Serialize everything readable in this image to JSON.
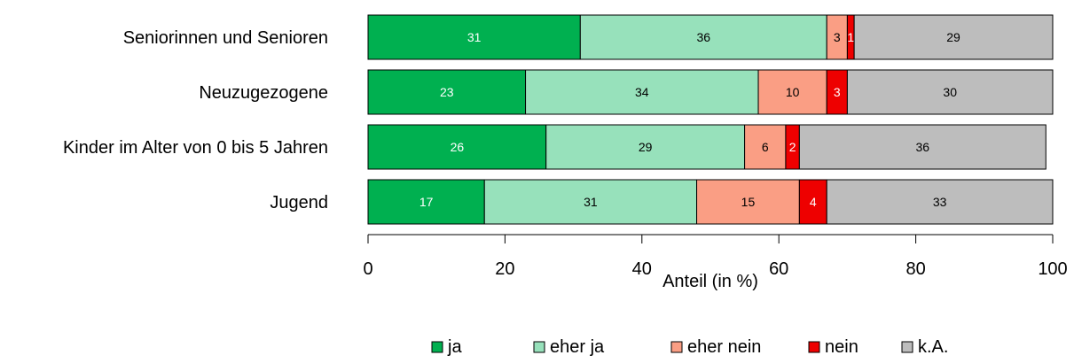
{
  "chart_data": {
    "type": "bar",
    "orientation": "horizontal",
    "stacked": true,
    "title": "",
    "xlabel": "Anteil (in %)",
    "ylabel": "",
    "xlim": [
      0,
      100
    ],
    "xticks": [
      0,
      20,
      40,
      60,
      80,
      100
    ],
    "categories": [
      "Seniorinnen und Senioren",
      "Neuzugezogene",
      "Kinder im Alter von 0 bis 5 Jahren",
      "Jugend"
    ],
    "series": [
      {
        "name": "ja",
        "color": "#00b050",
        "labelColor": "#ffffff",
        "values": [
          31,
          23,
          26,
          17
        ]
      },
      {
        "name": "eher ja",
        "color": "#97e1bb",
        "labelColor": "#000000",
        "values": [
          36,
          34,
          29,
          31
        ]
      },
      {
        "name": "eher nein",
        "color": "#fa9e84",
        "labelColor": "#000000",
        "values": [
          3,
          10,
          6,
          15
        ]
      },
      {
        "name": "nein",
        "color": "#ee0000",
        "labelColor": "#ffffff",
        "values": [
          1,
          3,
          2,
          4
        ]
      },
      {
        "name": "k.A.",
        "color": "#bdbdbd",
        "labelColor": "#000000",
        "values": [
          29,
          30,
          36,
          33
        ]
      }
    ],
    "legend_position": "bottom"
  }
}
